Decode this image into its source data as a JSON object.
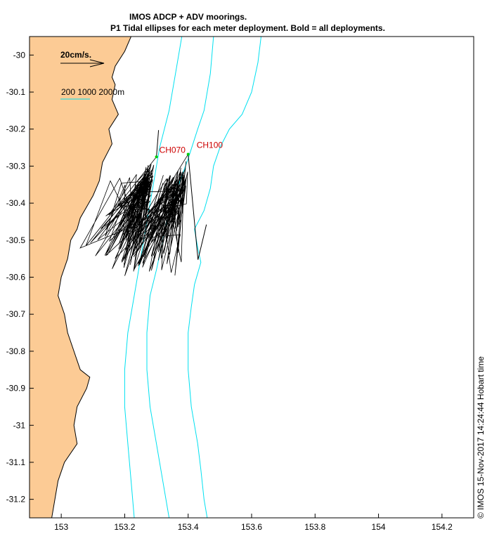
{
  "header": {
    "title": "IMOS ADCP + ADV moorings.",
    "subtitle": "P1  Tidal ellipses for each meter deployment. Bold = all deployments."
  },
  "legend": {
    "scale_label": "20cm/s.",
    "depth_label": "200 1000 2000m"
  },
  "footer": {
    "credit": "© IMOS 15-Nov-2017 14:24:44 Hobart time"
  },
  "colors": {
    "land": "#fccb95",
    "isobath": "#00e0f0",
    "station_label": "#cc0000",
    "station_marker": "#00cc00",
    "ellipse": "#000000"
  },
  "chart_data": {
    "type": "map",
    "xlim": [
      152.9,
      154.3
    ],
    "ylim": [
      -31.25,
      -29.95
    ],
    "x_ticks": [
      {
        "value": 153.0,
        "label": "153"
      },
      {
        "value": 153.2,
        "label": "153.2"
      },
      {
        "value": 153.4,
        "label": "153.4"
      },
      {
        "value": 153.6,
        "label": "153.6"
      },
      {
        "value": 153.8,
        "label": "153.8"
      },
      {
        "value": 154.0,
        "label": "154"
      },
      {
        "value": 154.2,
        "label": "154.2"
      }
    ],
    "y_ticks": [
      {
        "value": -30.0,
        "label": "-30"
      },
      {
        "value": -30.1,
        "label": "-30.1"
      },
      {
        "value": -30.2,
        "label": "-30.2"
      },
      {
        "value": -30.3,
        "label": "-30.3"
      },
      {
        "value": -30.4,
        "label": "-30.4"
      },
      {
        "value": -30.5,
        "label": "-30.5"
      },
      {
        "value": -30.6,
        "label": "-30.6"
      },
      {
        "value": -30.7,
        "label": "-30.7"
      },
      {
        "value": -30.8,
        "label": "-30.8"
      },
      {
        "value": -30.9,
        "label": "-30.9"
      },
      {
        "value": -31.0,
        "label": "-31"
      },
      {
        "value": -31.1,
        "label": "-31.1"
      },
      {
        "value": -31.2,
        "label": "-31.2"
      }
    ],
    "stations": [
      {
        "name": "CH070",
        "lon": 153.3,
        "lat": -30.275
      },
      {
        "name": "CH100",
        "lon": 153.4,
        "lat": -30.268
      }
    ],
    "coastline": [
      [
        153.22,
        -29.95
      ],
      [
        153.2,
        -29.99
      ],
      [
        153.17,
        -30.03
      ],
      [
        153.16,
        -30.06
      ],
      [
        153.17,
        -30.08
      ],
      [
        153.16,
        -30.12
      ],
      [
        153.18,
        -30.16
      ],
      [
        153.15,
        -30.2
      ],
      [
        153.16,
        -30.24
      ],
      [
        153.13,
        -30.29
      ],
      [
        153.12,
        -30.34
      ],
      [
        153.1,
        -30.38
      ],
      [
        153.08,
        -30.41
      ],
      [
        153.06,
        -30.44
      ],
      [
        153.05,
        -30.47
      ],
      [
        153.03,
        -30.5
      ],
      [
        153.02,
        -30.55
      ],
      [
        153.0,
        -30.6
      ],
      [
        152.99,
        -30.65
      ],
      [
        153.01,
        -30.7
      ],
      [
        153.02,
        -30.75
      ],
      [
        153.04,
        -30.8
      ],
      [
        153.06,
        -30.85
      ],
      [
        153.09,
        -30.87
      ],
      [
        153.08,
        -30.9
      ],
      [
        153.05,
        -30.95
      ],
      [
        153.04,
        -31.0
      ],
      [
        153.05,
        -31.05
      ],
      [
        153.01,
        -31.1
      ],
      [
        152.99,
        -31.15
      ],
      [
        152.98,
        -31.2
      ],
      [
        152.97,
        -31.25
      ]
    ],
    "isobaths": [
      {
        "depth_m": 200,
        "points": [
          [
            153.38,
            -29.95
          ],
          [
            153.36,
            -30.05
          ],
          [
            153.34,
            -30.15
          ],
          [
            153.31,
            -30.25
          ],
          [
            153.29,
            -30.35
          ],
          [
            153.27,
            -30.45
          ],
          [
            153.25,
            -30.55
          ],
          [
            153.23,
            -30.65
          ],
          [
            153.21,
            -30.75
          ],
          [
            153.2,
            -30.85
          ],
          [
            153.2,
            -30.95
          ],
          [
            153.21,
            -31.05
          ],
          [
            153.22,
            -31.15
          ],
          [
            153.23,
            -31.25
          ]
        ]
      },
      {
        "depth_m": 1000,
        "points": [
          [
            153.48,
            -29.95
          ],
          [
            153.47,
            -30.05
          ],
          [
            153.45,
            -30.15
          ],
          [
            153.43,
            -30.2
          ],
          [
            153.4,
            -30.28
          ],
          [
            153.37,
            -30.35
          ],
          [
            153.34,
            -30.42
          ],
          [
            153.32,
            -30.5
          ],
          [
            153.3,
            -30.58
          ],
          [
            153.28,
            -30.65
          ],
          [
            153.27,
            -30.75
          ],
          [
            153.27,
            -30.85
          ],
          [
            153.28,
            -30.95
          ],
          [
            153.3,
            -31.05
          ],
          [
            153.32,
            -31.15
          ],
          [
            153.34,
            -31.25
          ]
        ]
      },
      {
        "depth_m": 2000,
        "points": [
          [
            153.63,
            -29.95
          ],
          [
            153.62,
            -30.02
          ],
          [
            153.6,
            -30.1
          ],
          [
            153.57,
            -30.16
          ],
          [
            153.53,
            -30.2
          ],
          [
            153.5,
            -30.25
          ],
          [
            153.48,
            -30.3
          ],
          [
            153.47,
            -30.36
          ],
          [
            153.45,
            -30.42
          ],
          [
            153.42,
            -30.47
          ],
          [
            153.43,
            -30.52
          ],
          [
            153.44,
            -30.56
          ],
          [
            153.42,
            -30.62
          ],
          [
            153.41,
            -30.68
          ],
          [
            153.4,
            -30.75
          ],
          [
            153.4,
            -30.85
          ],
          [
            153.41,
            -30.95
          ],
          [
            153.43,
            -31.05
          ],
          [
            153.44,
            -31.12
          ],
          [
            153.45,
            -31.2
          ],
          [
            153.46,
            -31.25
          ]
        ]
      }
    ]
  }
}
